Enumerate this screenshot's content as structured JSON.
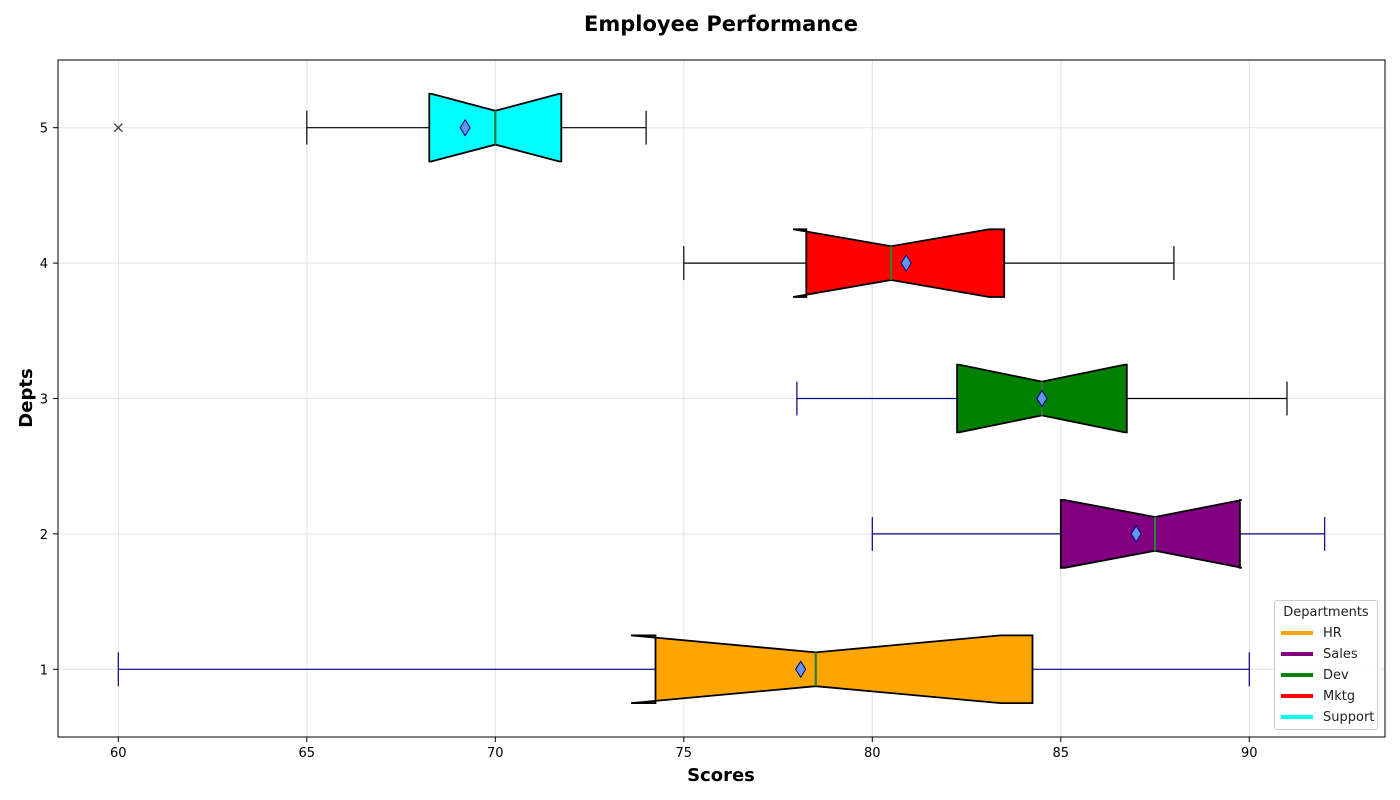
{
  "chart_data": {
    "type": "boxplot",
    "orientation": "horizontal",
    "notched": true,
    "title": "Employee Performance",
    "xlabel": "Scores",
    "ylabel": "Depts",
    "xlim": [
      58.4,
      93.6
    ],
    "ylim": [
      0.5,
      5.5
    ],
    "xticks": [
      60,
      65,
      70,
      75,
      80,
      85,
      90
    ],
    "yticks": [
      1,
      2,
      3,
      4,
      5
    ],
    "grid": true,
    "legend_title": "Departments",
    "legend_position": "lower-right",
    "series": [
      {
        "name": "HR",
        "position": 1,
        "color": "#ffa500",
        "whisker_color": "#00008b",
        "whislo": 60,
        "q1": 74.25,
        "median": 78.5,
        "q3": 84.25,
        "whishi": 90,
        "notch_lo": 73.6,
        "notch_hi": 83.4,
        "mean": 78.1,
        "fliers": []
      },
      {
        "name": "Sales",
        "position": 2,
        "color": "#800080",
        "whisker_color": "#00008b",
        "whislo": 80,
        "q1": 85,
        "median": 87.5,
        "q3": 89.75,
        "whishi": 92,
        "notch_lo": 85.1,
        "notch_hi": 89.8,
        "mean": 87,
        "fliers": []
      },
      {
        "name": "Dev",
        "position": 3,
        "color": "#008000",
        "whisker_color_low": "#00008b",
        "whisker_color_high": "#000000",
        "whislo": 78,
        "q1": 82.25,
        "median": 84.5,
        "q3": 86.75,
        "whishi": 91,
        "notch_lo": 82.3,
        "notch_hi": 86.7,
        "mean": 84.5,
        "fliers": []
      },
      {
        "name": "Mktg",
        "position": 4,
        "color": "#ff0000",
        "whisker_color": "#000000",
        "whislo": 75,
        "q1": 78.25,
        "median": 80.5,
        "q3": 83.5,
        "whishi": 88,
        "notch_lo": 77.9,
        "notch_hi": 83.1,
        "mean": 80.9,
        "fliers": []
      },
      {
        "name": "Support",
        "position": 5,
        "color": "#00ffff",
        "whisker_color": "#000000",
        "whislo": 65,
        "q1": 68.25,
        "median": 70,
        "q3": 71.75,
        "whishi": 74,
        "notch_lo": 68.3,
        "notch_hi": 71.7,
        "mean": 69.2,
        "fliers": [
          60
        ]
      }
    ],
    "median_color": "#2e7d32",
    "mean_marker_color": "#6495ed"
  }
}
